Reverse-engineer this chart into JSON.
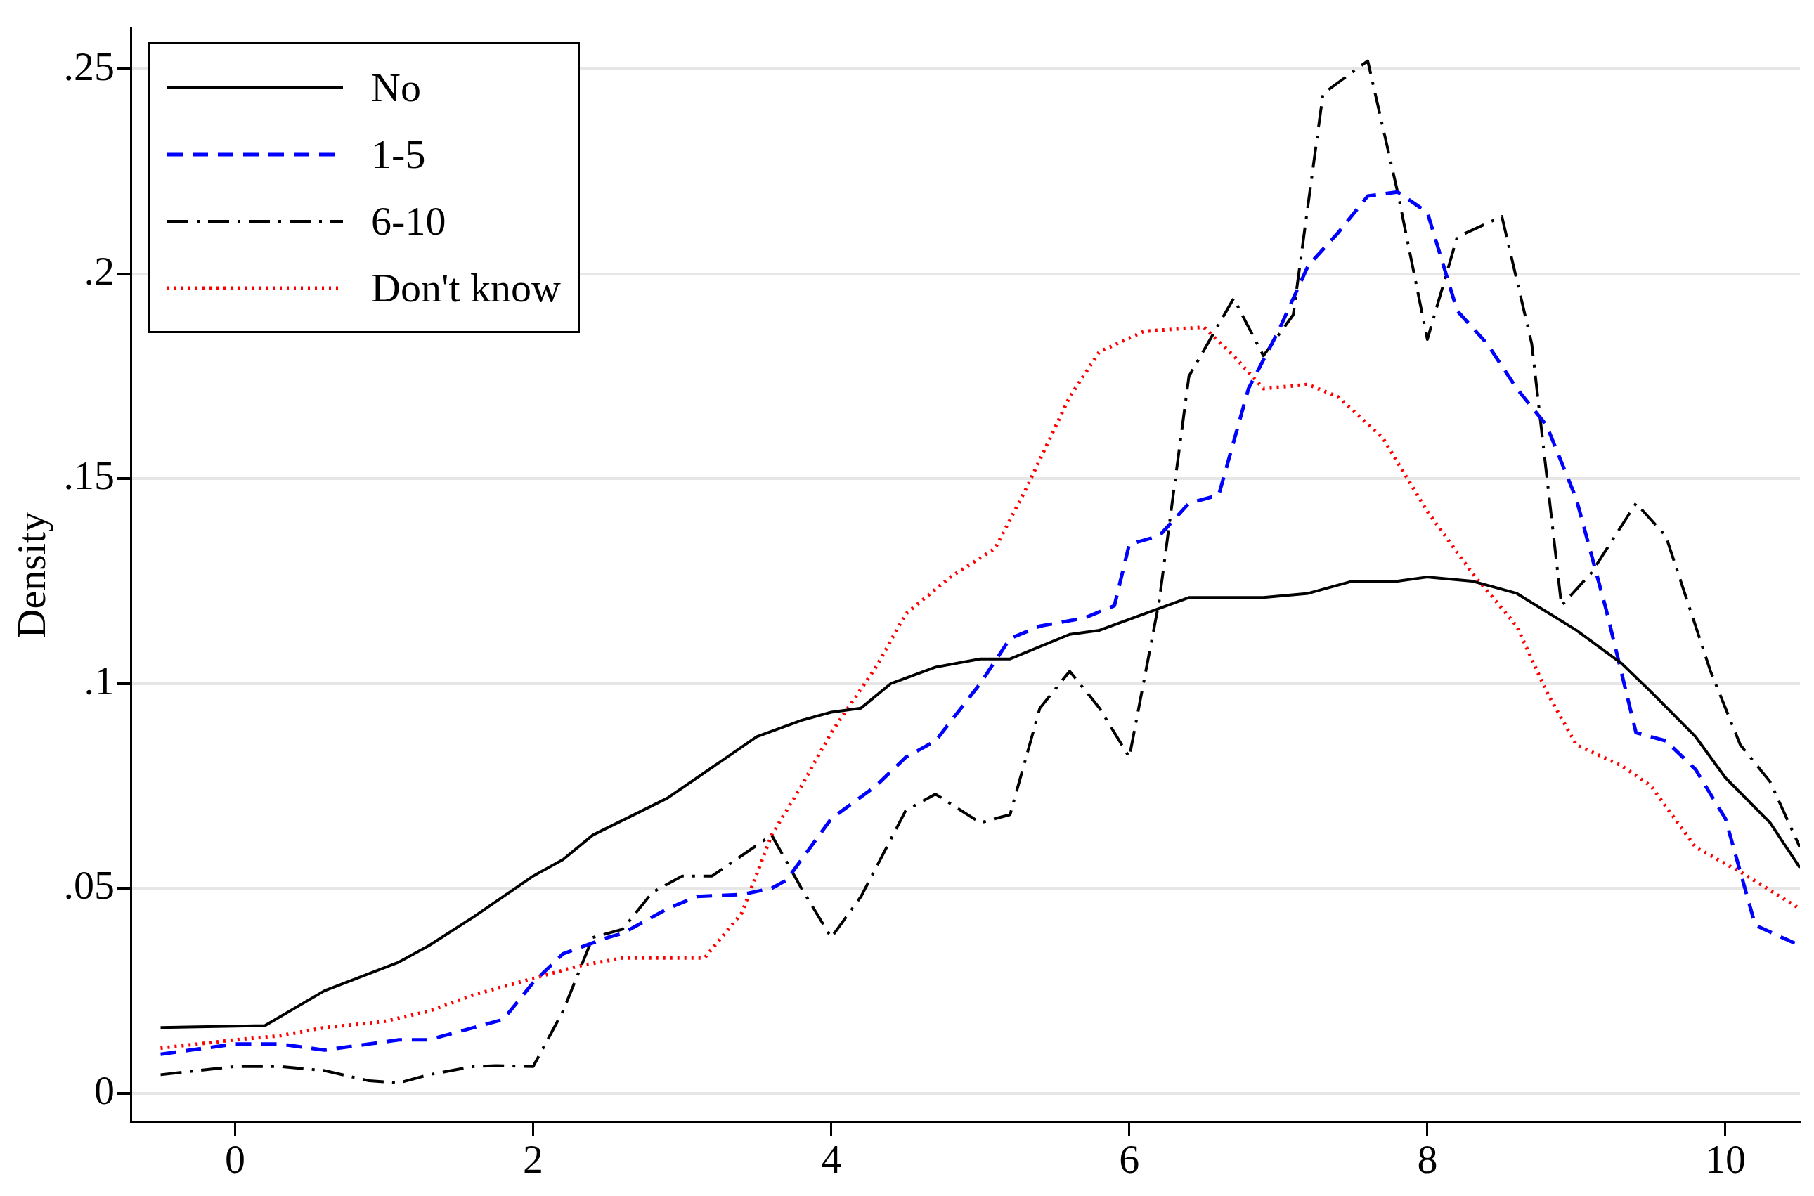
{
  "chart_data": {
    "type": "line",
    "ylabel": "Density",
    "xlim": [
      -0.7,
      10.5
    ],
    "ylim": [
      -0.007,
      0.26
    ],
    "xticks": [
      0,
      2,
      4,
      6,
      8,
      10
    ],
    "yticks": [
      {
        "value": 0,
        "label": "0"
      },
      {
        "value": 0.05,
        "label": ".05"
      },
      {
        "value": 0.1,
        "label": ".1"
      },
      {
        "value": 0.15,
        "label": ".15"
      },
      {
        "value": 0.2,
        "label": ".2"
      },
      {
        "value": 0.25,
        "label": ".25"
      }
    ],
    "grid": "y",
    "legend": "top left",
    "marker": "none",
    "series": [
      {
        "name": "No",
        "color": "#000000",
        "line_style": "solid",
        "x": [
          -0.5,
          0.2,
          0.6,
          1.1,
          1.3,
          1.6,
          2,
          2.2,
          2.4,
          2.9,
          3.5,
          3.8,
          4,
          4.2,
          4.4,
          4.7,
          5,
          5.2,
          5.6,
          5.8,
          6.1,
          6.4,
          6.9,
          7.2,
          7.5,
          7.8,
          8,
          8.3,
          8.6,
          9,
          9.3,
          9.5,
          9.8,
          10,
          10.3,
          10.5
        ],
        "values": [
          0.016,
          0.0165,
          0.025,
          0.032,
          0.036,
          0.043,
          0.053,
          0.057,
          0.063,
          0.072,
          0.087,
          0.091,
          0.093,
          0.094,
          0.1,
          0.104,
          0.106,
          0.106,
          0.112,
          0.113,
          0.117,
          0.121,
          0.121,
          0.122,
          0.125,
          0.125,
          0.126,
          0.125,
          0.122,
          0.113,
          0.105,
          0.098,
          0.087,
          0.077,
          0.066,
          0.055
        ]
      },
      {
        "name": "1-5",
        "color": "#0000ff",
        "line_style": "dashed",
        "x": [
          -0.5,
          0,
          0.3,
          0.6,
          0.9,
          1.1,
          1.3,
          1.6,
          1.8,
          2,
          2.2,
          2.5,
          2.6,
          2.9,
          3.1,
          3.4,
          3.6,
          3.7,
          4,
          4.3,
          4.5,
          4.7,
          5,
          5.2,
          5.4,
          5.7,
          5.9,
          6,
          6.2,
          6.4,
          6.6,
          6.8,
          7,
          7.2,
          7.4,
          7.6,
          7.8,
          8,
          8.2,
          8.4,
          8.6,
          8.8,
          9,
          9.2,
          9.4,
          9.6,
          9.8,
          10,
          10.2,
          10.5
        ],
        "values": [
          0.0095,
          0.012,
          0.012,
          0.0105,
          0.012,
          0.013,
          0.013,
          0.016,
          0.018,
          0.027,
          0.034,
          0.038,
          0.039,
          0.045,
          0.048,
          0.0485,
          0.05,
          0.052,
          0.067,
          0.075,
          0.082,
          0.086,
          0.1,
          0.111,
          0.114,
          0.116,
          0.119,
          0.134,
          0.136,
          0.144,
          0.146,
          0.172,
          0.186,
          0.202,
          0.21,
          0.219,
          0.22,
          0.215,
          0.191,
          0.183,
          0.172,
          0.163,
          0.145,
          0.118,
          0.088,
          0.086,
          0.079,
          0.067,
          0.041,
          0.036
        ]
      },
      {
        "name": "6-10",
        "color": "#000000",
        "line_style": "dashdot",
        "x": [
          -0.5,
          0,
          0.3,
          0.6,
          0.9,
          1.1,
          1.3,
          1.6,
          1.75,
          2,
          2.2,
          2.4,
          2.6,
          2.8,
          3,
          3.2,
          3.6,
          3.8,
          4,
          4.2,
          4.5,
          4.7,
          5,
          5.2,
          5.4,
          5.6,
          5.8,
          6,
          6.2,
          6.4,
          6.7,
          6.9,
          7.1,
          7.3,
          7.6,
          7.8,
          8,
          8.2,
          8.5,
          8.7,
          8.9,
          9.1,
          9.4,
          9.6,
          9.9,
          10.1,
          10.3,
          10.5
        ],
        "values": [
          0.0045,
          0.0065,
          0.0065,
          0.0055,
          0.003,
          0.0025,
          0.0045,
          0.0065,
          0.0067,
          0.0065,
          0.02,
          0.038,
          0.04,
          0.049,
          0.053,
          0.053,
          0.063,
          0.05,
          0.038,
          0.048,
          0.069,
          0.073,
          0.066,
          0.068,
          0.094,
          0.103,
          0.094,
          0.082,
          0.12,
          0.175,
          0.194,
          0.18,
          0.19,
          0.244,
          0.252,
          0.22,
          0.184,
          0.209,
          0.214,
          0.183,
          0.119,
          0.127,
          0.144,
          0.136,
          0.103,
          0.085,
          0.076,
          0.06
        ]
      },
      {
        "name": "Don't know",
        "color": "#ff0000",
        "line_style": "dotted",
        "x": [
          -0.5,
          0,
          0.3,
          0.6,
          1,
          1.3,
          1.6,
          2,
          2.3,
          2.6,
          3,
          3.15,
          3.4,
          3.6,
          3.8,
          4,
          4.3,
          4.5,
          4.8,
          5.1,
          5.3,
          5.6,
          5.8,
          6.1,
          6.5,
          6.7,
          6.9,
          7.2,
          7.4,
          7.7,
          8,
          8.3,
          8.6,
          8.8,
          9,
          9.3,
          9.5,
          9.8,
          10.1,
          10.5
        ],
        "values": [
          0.011,
          0.013,
          0.014,
          0.016,
          0.0175,
          0.02,
          0.024,
          0.028,
          0.031,
          0.033,
          0.033,
          0.033,
          0.044,
          0.063,
          0.075,
          0.088,
          0.104,
          0.117,
          0.126,
          0.133,
          0.147,
          0.17,
          0.181,
          0.186,
          0.187,
          0.18,
          0.172,
          0.173,
          0.17,
          0.16,
          0.142,
          0.127,
          0.114,
          0.098,
          0.085,
          0.08,
          0.075,
          0.06,
          0.054,
          0.045
        ]
      }
    ]
  }
}
